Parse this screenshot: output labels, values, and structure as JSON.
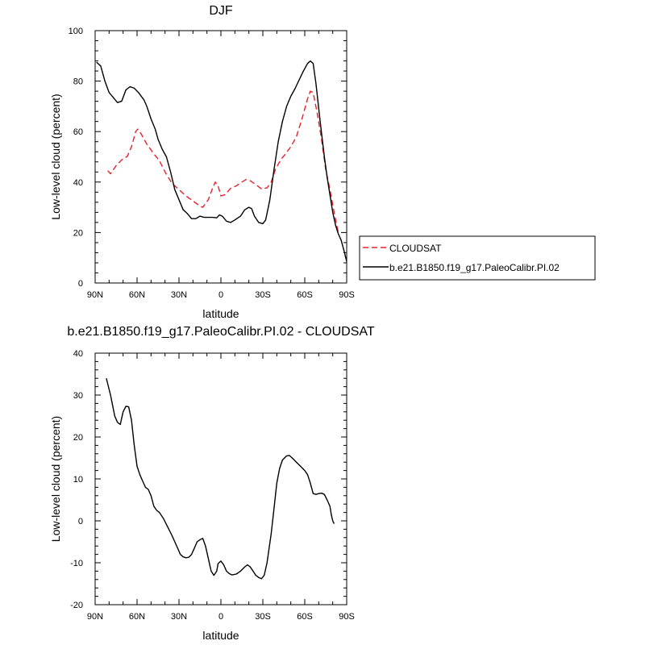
{
  "chart_data": [
    {
      "type": "line",
      "title": "DJF",
      "xlabel": "latitude",
      "ylabel": "Low-level cloud (percent)",
      "xlim": [
        90,
        -90
      ],
      "ylim": [
        0,
        100
      ],
      "x_ticks": [
        {
          "value": 90,
          "label": "90N"
        },
        {
          "value": 60,
          "label": "60N"
        },
        {
          "value": 30,
          "label": "30N"
        },
        {
          "value": 0,
          "label": "0"
        },
        {
          "value": -30,
          "label": "30S"
        },
        {
          "value": -60,
          "label": "60S"
        },
        {
          "value": -90,
          "label": "90S"
        }
      ],
      "y_ticks": [
        0,
        20,
        40,
        60,
        80,
        100
      ],
      "legend_position": "outside-right",
      "series": [
        {
          "name": "CLOUDSAT",
          "color": "#e8202a",
          "style": "dashed",
          "points": [
            [
              81,
              44.5
            ],
            [
              79,
              43.3
            ],
            [
              75,
              46.5
            ],
            [
              71,
              48.8
            ],
            [
              67,
              50.2
            ],
            [
              64,
              54
            ],
            [
              61,
              60
            ],
            [
              59.5,
              61
            ],
            [
              57,
              59
            ],
            [
              53,
              55
            ],
            [
              47,
              50.5
            ],
            [
              44,
              48.5
            ],
            [
              40,
              44
            ],
            [
              35,
              39.5
            ],
            [
              30,
              37
            ],
            [
              25,
              34.5
            ],
            [
              20,
              32.5
            ],
            [
              15,
              30.5
            ],
            [
              13,
              30
            ],
            [
              9,
              33
            ],
            [
              6,
              37.5
            ],
            [
              4,
              40
            ],
            [
              2,
              38.5
            ],
            [
              0,
              34.5
            ],
            [
              -3,
              35
            ],
            [
              -7,
              37.5
            ],
            [
              -11,
              38.5
            ],
            [
              -15,
              40
            ],
            [
              -18,
              41
            ],
            [
              -21,
              40.5
            ],
            [
              -25,
              39
            ],
            [
              -29,
              37.3
            ],
            [
              -33,
              37.7
            ],
            [
              -36,
              40
            ],
            [
              -39,
              45
            ],
            [
              -43,
              49
            ],
            [
              -46,
              51
            ],
            [
              -50,
              54
            ],
            [
              -54,
              58
            ],
            [
              -58,
              65
            ],
            [
              -62,
              73
            ],
            [
              -64,
              76
            ],
            [
              -66,
              75.5
            ],
            [
              -69,
              67
            ],
            [
              -72,
              57
            ],
            [
              -75,
              45
            ],
            [
              -78,
              37
            ],
            [
              -81,
              28
            ],
            [
              -84,
              20
            ]
          ]
        },
        {
          "name": "b.e21.B1850.f19_g17.PaleoCalibr.PI.02",
          "color": "#000000",
          "style": "solid",
          "points": [
            [
              89,
              87.5
            ],
            [
              86,
              86
            ],
            [
              83,
              80
            ],
            [
              80,
              75.5
            ],
            [
              77,
              73.5
            ],
            [
              74,
              71.5
            ],
            [
              71,
              72
            ],
            [
              68,
              76.5
            ],
            [
              65,
              77.8
            ],
            [
              62,
              77.2
            ],
            [
              59,
              75.5
            ],
            [
              55,
              72.5
            ],
            [
              53,
              70
            ],
            [
              50,
              65
            ],
            [
              47,
              61
            ],
            [
              45,
              57
            ],
            [
              42,
              53
            ],
            [
              39,
              50
            ],
            [
              36,
              44
            ],
            [
              33,
              37
            ],
            [
              30,
              33
            ],
            [
              27,
              29
            ],
            [
              24,
              27.5
            ],
            [
              21,
              25.5
            ],
            [
              18,
              25.5
            ],
            [
              15,
              26.5
            ],
            [
              12,
              26
            ],
            [
              9,
              26
            ],
            [
              6,
              26
            ],
            [
              3,
              25.8
            ],
            [
              1,
              27
            ],
            [
              -1,
              26.5
            ],
            [
              -4,
              24.5
            ],
            [
              -7,
              24
            ],
            [
              -10,
              25
            ],
            [
              -14,
              26.5
            ],
            [
              -17,
              29
            ],
            [
              -20,
              30
            ],
            [
              -22,
              29.5
            ],
            [
              -24,
              26.5
            ],
            [
              -27,
              24
            ],
            [
              -30,
              23.5
            ],
            [
              -32,
              25
            ],
            [
              -35,
              33
            ],
            [
              -38,
              45
            ],
            [
              -41,
              56
            ],
            [
              -44,
              64
            ],
            [
              -47,
              70
            ],
            [
              -50,
              74
            ],
            [
              -53,
              77
            ],
            [
              -56,
              80.5
            ],
            [
              -59,
              84
            ],
            [
              -62,
              87
            ],
            [
              -64,
              88
            ],
            [
              -66,
              87
            ],
            [
              -68,
              79
            ],
            [
              -71,
              64
            ],
            [
              -74,
              50
            ],
            [
              -76,
              42
            ],
            [
              -78,
              35
            ],
            [
              -80,
              28
            ],
            [
              -82,
              23
            ],
            [
              -84,
              19.5
            ],
            [
              -86,
              17
            ],
            [
              -88,
              13
            ],
            [
              -90,
              8.5
            ]
          ]
        }
      ]
    },
    {
      "type": "line",
      "title": "b.e21.B1850.f19_g17.PaleoCalibr.PI.02 - CLOUDSAT",
      "xlabel": "latitude",
      "ylabel": "Low-level cloud (percent)",
      "xlim": [
        90,
        -90
      ],
      "ylim": [
        -20,
        40
      ],
      "x_ticks": [
        {
          "value": 90,
          "label": "90N"
        },
        {
          "value": 60,
          "label": "60N"
        },
        {
          "value": 30,
          "label": "30N"
        },
        {
          "value": 0,
          "label": "0"
        },
        {
          "value": -30,
          "label": "30S"
        },
        {
          "value": -60,
          "label": "60S"
        },
        {
          "value": -90,
          "label": "90S"
        }
      ],
      "y_ticks": [
        -20,
        -10,
        0,
        10,
        20,
        30,
        40
      ],
      "series": [
        {
          "color": "#000000",
          "style": "solid",
          "points": [
            [
              82,
              34
            ],
            [
              79,
              30
            ],
            [
              76,
              25
            ],
            [
              74,
              23.5
            ],
            [
              72,
              23
            ],
            [
              70,
              26
            ],
            [
              68,
              27.3
            ],
            [
              66,
              27.2
            ],
            [
              64,
              24
            ],
            [
              62,
              18
            ],
            [
              60,
              13
            ],
            [
              58,
              11
            ],
            [
              56,
              9.5
            ],
            [
              54,
              8
            ],
            [
              52,
              7.5
            ],
            [
              50,
              6
            ],
            [
              48,
              3.5
            ],
            [
              46,
              2.5
            ],
            [
              44,
              2
            ],
            [
              41,
              0.5
            ],
            [
              38,
              -1.5
            ],
            [
              35,
              -3.5
            ],
            [
              33,
              -5
            ],
            [
              31,
              -6.5
            ],
            [
              29,
              -8
            ],
            [
              27,
              -8.6
            ],
            [
              25,
              -8.8
            ],
            [
              23,
              -8.7
            ],
            [
              21,
              -8
            ],
            [
              19,
              -6.5
            ],
            [
              17,
              -5
            ],
            [
              15,
              -4.5
            ],
            [
              13,
              -4.2
            ],
            [
              11,
              -6
            ],
            [
              9,
              -9
            ],
            [
              7,
              -12
            ],
            [
              5,
              -13
            ],
            [
              3,
              -12
            ],
            [
              2,
              -10.2
            ],
            [
              0,
              -9.6
            ],
            [
              -2,
              -10.5
            ],
            [
              -4,
              -12
            ],
            [
              -6,
              -12.6
            ],
            [
              -8,
              -12.9
            ],
            [
              -11,
              -12.7
            ],
            [
              -14,
              -12
            ],
            [
              -17,
              -11
            ],
            [
              -19,
              -10.5
            ],
            [
              -21,
              -11
            ],
            [
              -23,
              -12
            ],
            [
              -25,
              -13
            ],
            [
              -27,
              -13.5
            ],
            [
              -29,
              -13.8
            ],
            [
              -31,
              -13
            ],
            [
              -33,
              -10
            ],
            [
              -36,
              -3
            ],
            [
              -38,
              3
            ],
            [
              -40,
              9
            ],
            [
              -42,
              12.5
            ],
            [
              -44,
              14.5
            ],
            [
              -47,
              15.5
            ],
            [
              -49,
              15.6
            ],
            [
              -51,
              15
            ],
            [
              -54,
              14
            ],
            [
              -57,
              13
            ],
            [
              -60,
              12
            ],
            [
              -62,
              11
            ],
            [
              -64,
              9
            ],
            [
              -66,
              6.5
            ],
            [
              -68,
              6.3
            ],
            [
              -70,
              6.5
            ],
            [
              -72,
              6.6
            ],
            [
              -74,
              6.3
            ],
            [
              -76,
              5
            ],
            [
              -78,
              3.5
            ],
            [
              -79,
              1.5
            ],
            [
              -80,
              0
            ],
            [
              -81,
              -0.7
            ]
          ]
        }
      ]
    }
  ]
}
